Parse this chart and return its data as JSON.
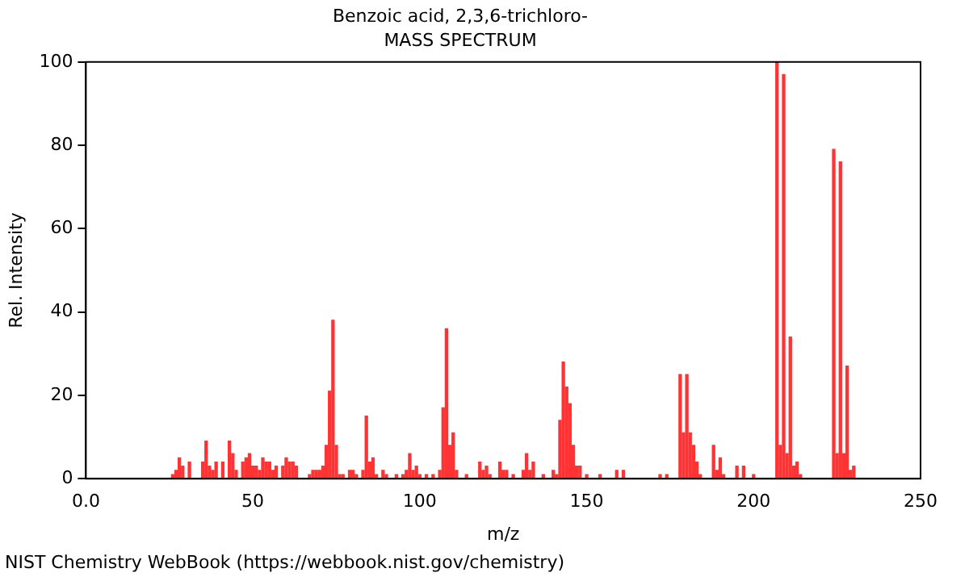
{
  "chart_data": {
    "type": "bar",
    "title": "Benzoic acid, 2,3,6-trichloro-",
    "subtitle": "MASS SPECTRUM",
    "xlabel": "m/z",
    "ylabel": "Rel. Intensity",
    "x": [
      26,
      27,
      28,
      29,
      31,
      35,
      36,
      37,
      38,
      39,
      41,
      43,
      44,
      45,
      47,
      48,
      49,
      50,
      51,
      52,
      53,
      54,
      55,
      56,
      57,
      59,
      60,
      61,
      62,
      63,
      67,
      68,
      69,
      70,
      71,
      72,
      73,
      74,
      75,
      76,
      77,
      79,
      80,
      81,
      83,
      84,
      85,
      86,
      87,
      89,
      90,
      93,
      95,
      96,
      97,
      98,
      99,
      100,
      102,
      104,
      106,
      107,
      108,
      109,
      110,
      111,
      114,
      118,
      119,
      120,
      121,
      124,
      125,
      126,
      128,
      131,
      132,
      133,
      134,
      137,
      140,
      141,
      142,
      143,
      144,
      145,
      146,
      147,
      148,
      150,
      154,
      159,
      161,
      172,
      174,
      178,
      179,
      180,
      181,
      182,
      183,
      184,
      188,
      189,
      190,
      191,
      195,
      197,
      200,
      207,
      208,
      209,
      210,
      211,
      212,
      213,
      214,
      224,
      225,
      226,
      227,
      228,
      229,
      230
    ],
    "values": [
      1,
      2,
      5,
      3,
      4,
      4,
      9,
      3,
      2,
      4,
      4,
      9,
      6,
      2,
      4,
      5,
      6,
      3,
      3,
      2,
      5,
      4,
      4,
      2,
      3,
      3,
      5,
      4,
      4,
      3,
      1,
      2,
      2,
      2,
      3,
      8,
      21,
      38,
      8,
      1,
      1,
      2,
      2,
      1,
      2,
      15,
      4,
      5,
      1,
      2,
      1,
      1,
      1,
      2,
      6,
      2,
      3,
      1,
      1,
      1,
      2,
      17,
      36,
      8,
      11,
      2,
      1,
      4,
      2,
      3,
      1,
      4,
      2,
      2,
      1,
      2,
      6,
      2,
      4,
      1,
      2,
      1,
      14,
      28,
      22,
      18,
      8,
      3,
      3,
      1,
      1,
      2,
      2,
      1,
      1,
      25,
      11,
      25,
      11,
      8,
      4,
      1,
      8,
      2,
      5,
      1,
      3,
      3,
      1,
      100,
      8,
      97,
      6,
      34,
      3,
      4,
      1,
      79,
      6,
      76,
      6,
      27,
      2,
      3
    ],
    "color": "#ff3333",
    "xlim": [
      0,
      250
    ],
    "xticks": [
      {
        "value": 0,
        "label": "0.0"
      },
      50,
      100,
      150,
      200,
      250
    ],
    "ylim": [
      0,
      100
    ],
    "yticks": [
      0,
      20,
      40,
      60,
      80,
      100
    ],
    "grid": false,
    "legend": false,
    "annotations": [
      "NIST Chemistry WebBook (https://webbook.nist.gov/chemistry)"
    ]
  }
}
